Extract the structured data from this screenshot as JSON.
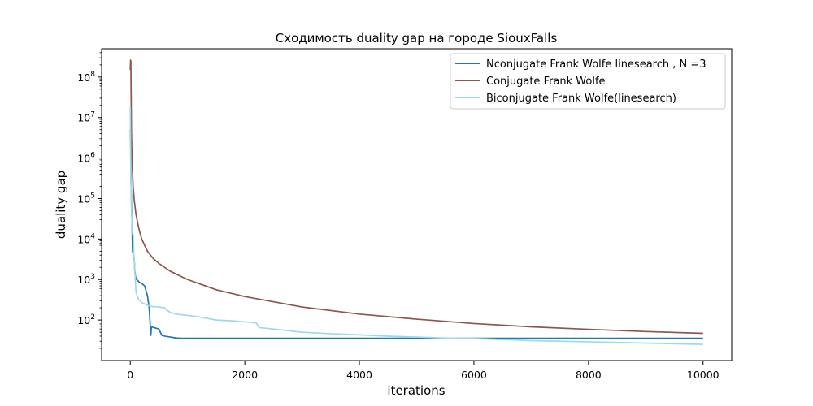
{
  "chart_data": {
    "type": "line",
    "title": "Сходимость duality gap на городе SiouxFalls",
    "xlabel": "iterations",
    "ylabel": "duality gap",
    "xlim": [
      -500,
      10500
    ],
    "ylim": [
      10,
      500000000
    ],
    "yscale": "log",
    "xticks": [
      0,
      2000,
      4000,
      6000,
      8000,
      10000
    ],
    "xtick_labels": [
      "0",
      "2000",
      "4000",
      "6000",
      "8000",
      "10000"
    ],
    "yticks": [
      100,
      1000,
      10000,
      100000,
      1000000,
      10000000,
      100000000
    ],
    "ytick_exponents": [
      "2",
      "3",
      "4",
      "5",
      "6",
      "7",
      "8"
    ],
    "ytick_base": "10",
    "grid": false,
    "legend_position": "top-right",
    "series": [
      {
        "name": "Nconjugate Frank Wolfe linesearch , N =3",
        "color": "#1f77b4",
        "x": [
          0,
          5,
          10,
          15,
          20,
          30,
          40,
          50,
          60,
          70,
          80,
          90,
          110,
          130,
          160,
          200,
          250,
          300,
          330,
          350,
          360,
          365,
          370,
          380,
          400,
          450,
          500,
          550,
          600,
          700,
          800,
          900,
          1000,
          2000,
          3000,
          4000,
          5000,
          6000,
          7000,
          8000,
          9000,
          10000
        ],
        "y": [
          5000000,
          3000000,
          700000,
          200000,
          100000,
          30000,
          5000,
          4500,
          4000,
          3000,
          1600,
          1200,
          1000,
          950,
          850,
          800,
          700,
          400,
          200,
          70,
          42,
          55,
          65,
          68,
          66,
          63,
          60,
          42,
          40,
          38,
          36,
          35.5,
          35.5,
          35.5,
          35.5,
          35.5,
          35.5,
          35.5,
          35.5,
          35.5,
          35.5,
          35.5
        ]
      },
      {
        "name": "Conjugate Frank Wolfe",
        "color": "#8c564b",
        "x": [
          0,
          5,
          10,
          20,
          30,
          50,
          70,
          100,
          150,
          200,
          300,
          400,
          500,
          700,
          1000,
          1500,
          2000,
          3000,
          4000,
          5000,
          6000,
          7000,
          8000,
          9000,
          10000
        ],
        "y": [
          150000000,
          260000000,
          250000000,
          5000000,
          1000000,
          200000,
          90000,
          40000,
          18000,
          10000,
          5000,
          3300,
          2500,
          1600,
          1000,
          560,
          380,
          210,
          140,
          105,
          82,
          68,
          59,
          52,
          47
        ]
      },
      {
        "name": "Biconjugate Frank Wolfe(linesearch)",
        "color": "#9edae5",
        "x": [
          0,
          5,
          10,
          20,
          30,
          40,
          50,
          60,
          70,
          80,
          90,
          100,
          120,
          150,
          200,
          250,
          300,
          350,
          400,
          500,
          600,
          650,
          700,
          800,
          900,
          1000,
          1200,
          1500,
          1800,
          2000,
          2200,
          2250,
          2500,
          3000,
          3500,
          4000,
          4500,
          5000,
          5500,
          6000,
          6500,
          7000,
          8000,
          9000,
          10000
        ],
        "y": [
          20000000,
          3000000,
          400000,
          60000,
          30000,
          14000,
          12000,
          5000,
          3000,
          1500,
          900,
          500,
          400,
          320,
          270,
          250,
          230,
          220,
          215,
          210,
          200,
          170,
          155,
          140,
          135,
          130,
          120,
          100,
          95,
          90,
          85,
          65,
          60,
          50,
          46,
          43,
          40,
          38,
          36,
          35,
          33,
          31,
          29,
          27,
          25
        ]
      }
    ]
  }
}
